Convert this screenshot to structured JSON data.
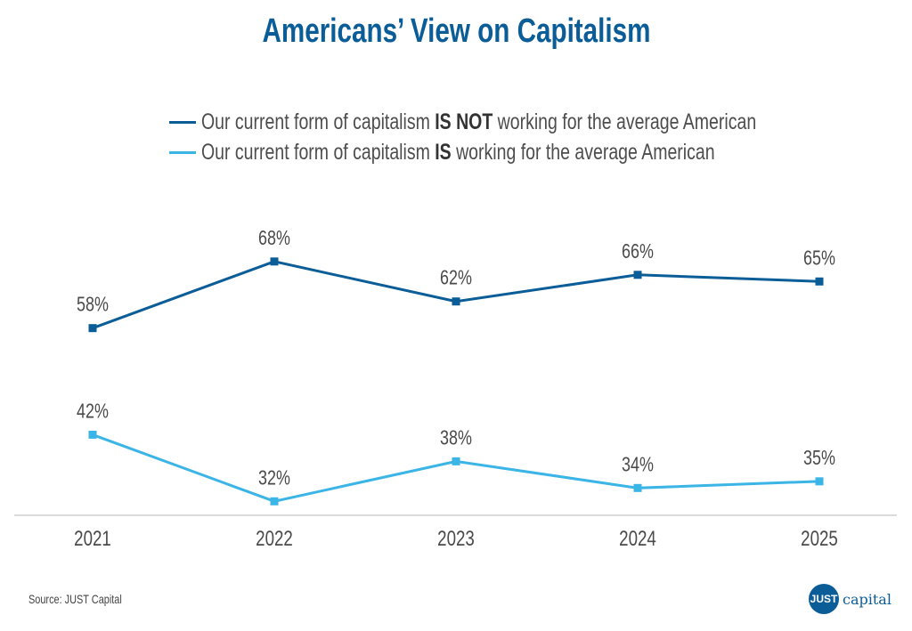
{
  "chart_data": {
    "type": "line",
    "title": "Americans’ View on Capitalism",
    "x": [
      "2021",
      "2022",
      "2023",
      "2024",
      "2025"
    ],
    "series": [
      {
        "name": "Our current form of capitalism IS NOT working for the average American",
        "legend_pre": "Our current form of capitalism ",
        "legend_bold": "IS NOT",
        "legend_post": " working for the average American",
        "color": "#0b5d98",
        "values": [
          58,
          68,
          62,
          66,
          65
        ],
        "labels": [
          "58%",
          "68%",
          "62%",
          "66%",
          "65%"
        ]
      },
      {
        "name": "Our current form of capitalism IS working for the average American",
        "legend_pre": "Our current form of capitalism ",
        "legend_bold": "IS",
        "legend_post": " working for the average American",
        "color": "#3bb4e6",
        "values": [
          42,
          32,
          38,
          34,
          35
        ],
        "labels": [
          "42%",
          "32%",
          "38%",
          "34%",
          "35%"
        ]
      }
    ],
    "xlabel": "",
    "ylabel": "",
    "ylim": [
      29.9,
      80
    ],
    "grid": false,
    "legend_placement": "top-center"
  },
  "source": "Source: JUST Capital",
  "logo": {
    "mark": "JUST",
    "word": "capital"
  }
}
